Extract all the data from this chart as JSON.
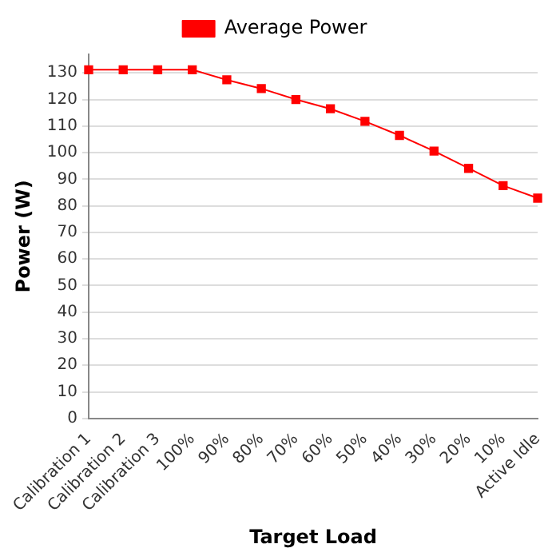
{
  "chart_data": {
    "type": "line",
    "xlabel": "Target Load",
    "ylabel": "Power (W)",
    "categories": [
      "Calibration 1",
      "Calibration 2",
      "Calibration 3",
      "100%",
      "90%",
      "80%",
      "70%",
      "60%",
      "50%",
      "40%",
      "30%",
      "20%",
      "10%",
      "Active Idle"
    ],
    "series": [
      {
        "name": "Average Power",
        "color": "#ff0000",
        "values": [
          131.2,
          131.2,
          131.2,
          131.2,
          127.4,
          124.1,
          120,
          116.5,
          111.8,
          106.5,
          100.6,
          94.1,
          87.6,
          82.9
        ]
      }
    ],
    "ylim": [
      0,
      137
    ],
    "yticks": [
      0,
      10,
      20,
      30,
      40,
      50,
      60,
      70,
      80,
      90,
      100,
      110,
      120,
      130
    ],
    "grid": "y",
    "legend": "top",
    "marker": "square",
    "line_style": "solid"
  }
}
